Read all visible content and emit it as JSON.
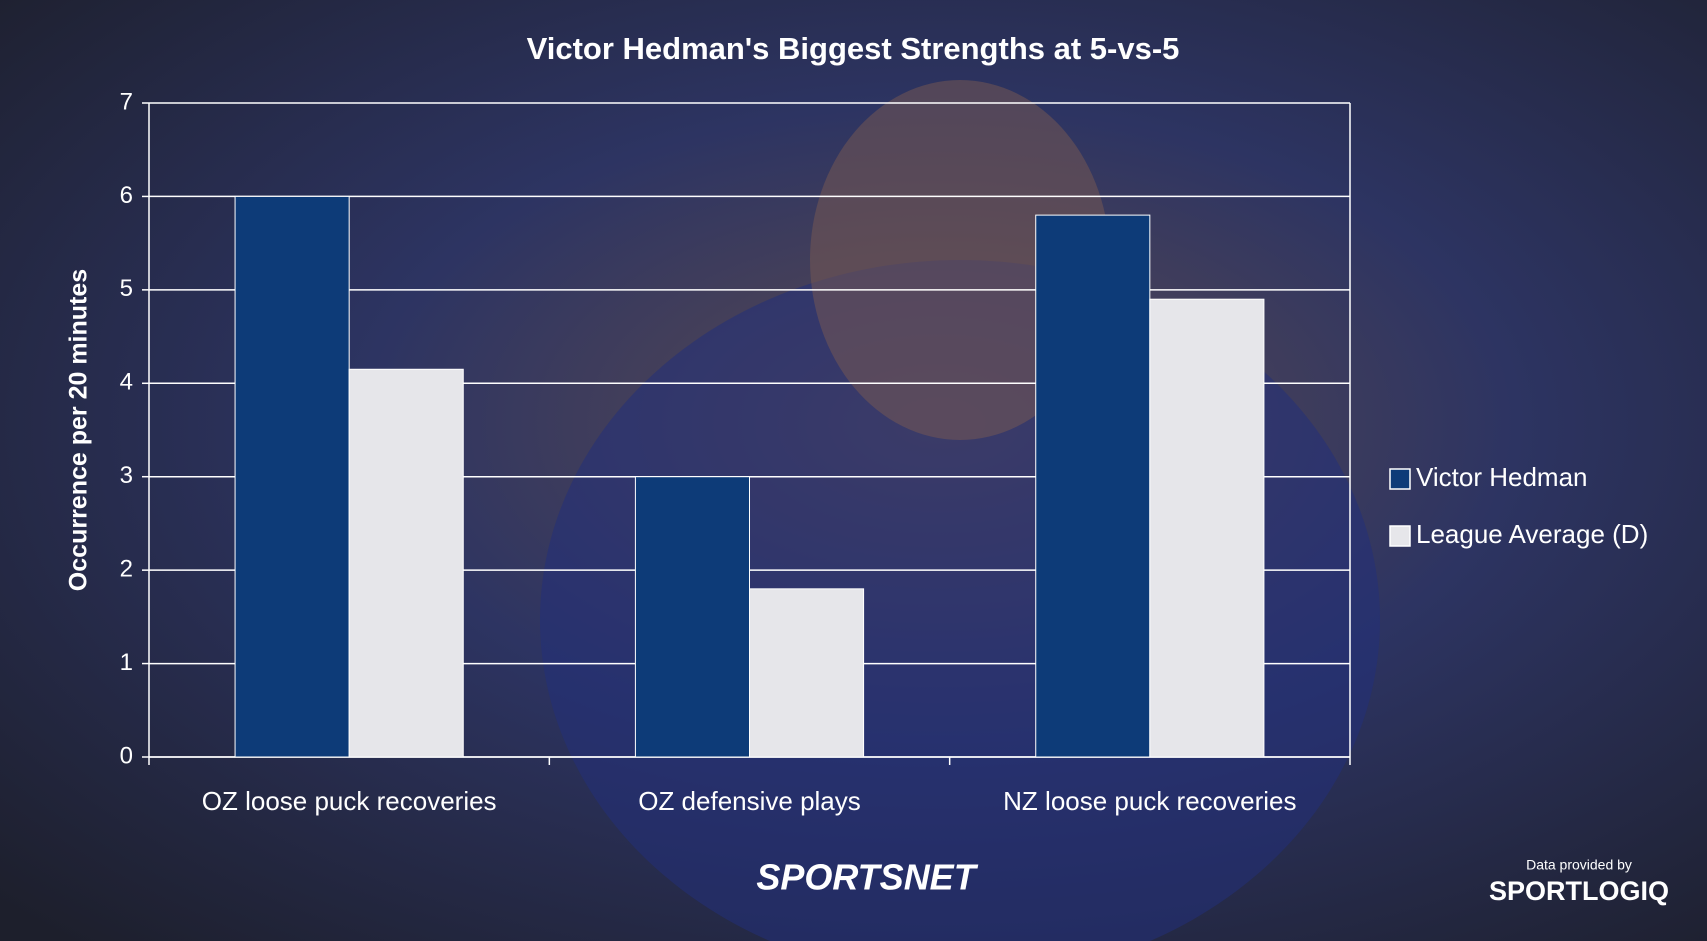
{
  "chart_data": {
    "type": "bar",
    "title": "Victor Hedman's Biggest Strengths at 5-vs-5",
    "y_label": "Occurrence per 20 minutes",
    "categories": [
      "OZ loose puck recoveries",
      "OZ defensive plays",
      "NZ loose puck recoveries"
    ],
    "series": [
      {
        "name": "Victor Hedman",
        "color": "#0d3b78",
        "values": [
          6,
          3,
          5.8
        ]
      },
      {
        "name": "League Average (D)",
        "color": "#e6e6ea",
        "values": [
          4.15,
          1.8,
          4.9
        ]
      }
    ],
    "ylim": [
      0,
      7
    ],
    "yticks": [
      0,
      1,
      2,
      3,
      4,
      5,
      6,
      7
    ],
    "grid": true,
    "legend": "right"
  },
  "branding": {
    "broadcaster": "SPORTSNET",
    "credit": "Data provided by",
    "provider": "SPORTLOGIQ"
  }
}
